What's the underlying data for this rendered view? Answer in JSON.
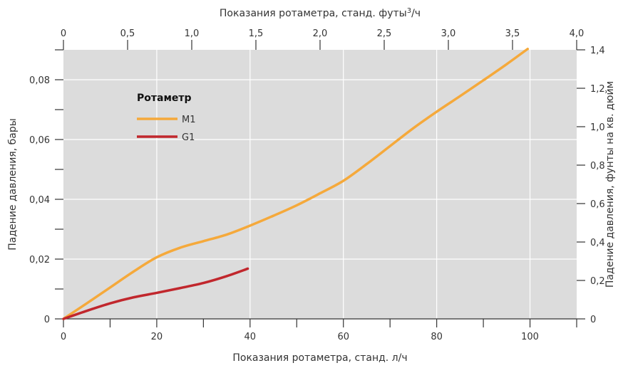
{
  "chart_data": {
    "type": "line",
    "top_axis": {
      "title_main": "Показания ротаметра, станд. футы",
      "title_sup": "3",
      "title_tail": "/ч",
      "range": [
        0,
        4.0
      ],
      "ticks": [
        0,
        0.5,
        1.0,
        1.5,
        2.0,
        2.5,
        3.0,
        3.5,
        4.0
      ],
      "tick_labels": [
        "0",
        "0,5",
        "1,0",
        "1,5",
        "2,0",
        "2,5",
        "3,0",
        "3,5",
        "4,0"
      ]
    },
    "bottom_axis": {
      "title": "Показания ротаметра, станд. л/ч",
      "range": [
        0,
        110
      ],
      "major_ticks": [
        0,
        20,
        40,
        60,
        80,
        100
      ],
      "tick_labels": [
        "0",
        "20",
        "40",
        "60",
        "80",
        "100"
      ],
      "minor_ticks": [
        10,
        30,
        50,
        70,
        90,
        110
      ]
    },
    "left_axis": {
      "title": "Падение давления, бары",
      "range": [
        0,
        0.09
      ],
      "major_ticks": [
        0,
        0.02,
        0.04,
        0.06,
        0.08
      ],
      "tick_labels": [
        "0",
        "0,02",
        "0,04",
        "0,06",
        "0,08"
      ],
      "minor_ticks": [
        0.01,
        0.03,
        0.05,
        0.07,
        0.09
      ]
    },
    "right_axis": {
      "title": "Падение давления, фунты на кв. дюйм",
      "range": [
        0,
        1.4
      ],
      "ticks": [
        0,
        0.2,
        0.4,
        0.6,
        0.8,
        1.0,
        1.2,
        1.4
      ],
      "tick_labels": [
        "0",
        "0,2",
        "0,4",
        "0,6",
        "0,8",
        "1,0",
        "1,2",
        "1,4"
      ]
    },
    "legend": {
      "title": "Ротаметр",
      "placement": "top-left"
    },
    "grid": true,
    "series": [
      {
        "name": "M1",
        "color": "#f5a93b",
        "x": [
          0,
          5,
          10,
          15,
          20,
          25,
          30,
          35,
          40,
          45,
          50,
          55,
          60,
          65,
          70,
          75,
          80,
          85,
          90,
          95,
          99.5
        ],
        "y": [
          0,
          0.0052,
          0.0105,
          0.0158,
          0.0206,
          0.0238,
          0.026,
          0.0282,
          0.0312,
          0.0345,
          0.038,
          0.042,
          0.0462,
          0.0518,
          0.0578,
          0.0638,
          0.0693,
          0.0745,
          0.0798,
          0.0852,
          0.0903
        ]
      },
      {
        "name": "G1",
        "color": "#c1272d",
        "x": [
          0,
          5,
          10,
          15,
          20,
          25,
          30,
          35,
          39.5
        ],
        "y": [
          0,
          0.0027,
          0.0052,
          0.0072,
          0.0087,
          0.0103,
          0.012,
          0.0143,
          0.0168
        ]
      }
    ]
  }
}
